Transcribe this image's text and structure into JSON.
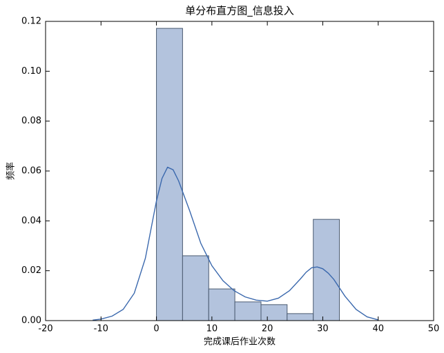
{
  "chart_data": {
    "type": "histogram",
    "title": "单分布直方图_信息投入",
    "x_label": "完成课后作业次数",
    "y_label": "频率",
    "bins": [
      0,
      4.71,
      9.43,
      14.14,
      18.86,
      23.57,
      28.29,
      33
    ],
    "values": [
      0.1172,
      0.026,
      0.0127,
      0.0075,
      0.0064,
      0.0028,
      0.0406
    ],
    "color": "#b3c3dd",
    "kde": {
      "color": "#3a68ad",
      "x": [
        -11.5,
        -10,
        -8,
        -6,
        -4,
        -2,
        0,
        1,
        2,
        3,
        4,
        6,
        8,
        10,
        12,
        14,
        16,
        18,
        20,
        22,
        24,
        26,
        27,
        28,
        29,
        30,
        31,
        32,
        34,
        36,
        38,
        40
      ],
      "values": [
        0.0002,
        0.0006,
        0.0018,
        0.0045,
        0.011,
        0.025,
        0.048,
        0.057,
        0.0615,
        0.0605,
        0.056,
        0.044,
        0.031,
        0.022,
        0.016,
        0.012,
        0.0095,
        0.0082,
        0.0078,
        0.009,
        0.012,
        0.0168,
        0.0194,
        0.0212,
        0.0215,
        0.0208,
        0.019,
        0.0165,
        0.0098,
        0.0045,
        0.0015,
        0.0003
      ]
    },
    "xlim": [
      -20,
      50
    ],
    "xticks": [
      -20,
      -10,
      0,
      10,
      20,
      30,
      40,
      50
    ],
    "ylim": [
      0,
      0.12
    ],
    "yticks": [
      {
        "value": 0,
        "label": "0.00"
      },
      {
        "value": 0.02,
        "label": "0.02"
      },
      {
        "value": 0.04,
        "label": "0.04"
      },
      {
        "value": 0.06,
        "label": "0.06"
      },
      {
        "value": 0.08,
        "label": "0.08"
      },
      {
        "value": 0.1,
        "label": "0.10"
      },
      {
        "value": 0.12,
        "label": "0.12"
      }
    ]
  }
}
